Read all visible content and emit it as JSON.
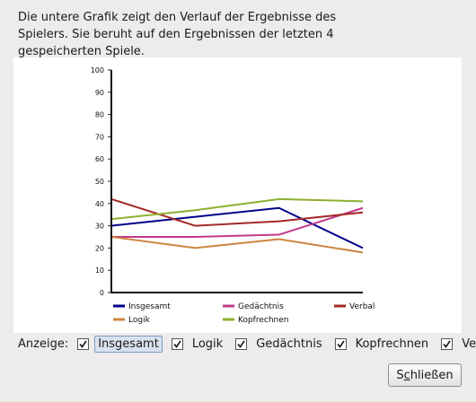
{
  "description": "Die untere Grafik zeigt den Verlauf der Ergebnisse des Spielers. Sie beruht auf den Ergebnissen der letzten 4 gespeicherten Spiele.",
  "controls": {
    "label": "Anzeige:",
    "checkboxes": [
      {
        "label": "Insgesamt",
        "checked": true
      },
      {
        "label": "Logik",
        "checked": true
      },
      {
        "label": "Gedächtnis",
        "checked": true
      },
      {
        "label": "Kopfrechnen",
        "checked": true
      },
      {
        "label": "Verbal",
        "checked": true
      }
    ]
  },
  "close_button": {
    "pre": "S",
    "mnemonic": "c",
    "post": "hließen"
  },
  "chart_data": {
    "type": "line",
    "x": [
      1,
      2,
      3,
      4
    ],
    "ylim": [
      0,
      100
    ],
    "yticks": [
      0,
      10,
      20,
      30,
      40,
      50,
      60,
      70,
      80,
      90,
      100
    ],
    "grid": false,
    "legend_position": "bottom",
    "series": [
      {
        "name": "Insgesamt",
        "color": "#00008b",
        "values": [
          30,
          34,
          38,
          20
        ]
      },
      {
        "name": "Gedächtnis",
        "color": "#c03a8a",
        "values": [
          25,
          25,
          26,
          38
        ]
      },
      {
        "name": "Verbal",
        "color": "#a52a2a",
        "values": [
          42,
          30,
          32,
          36
        ]
      },
      {
        "name": "Logik",
        "color": "#cd853f",
        "values": [
          25,
          20,
          24,
          18
        ]
      },
      {
        "name": "Kopfrechnen",
        "color": "#8db030",
        "values": [
          33,
          37,
          42,
          41
        ]
      }
    ]
  }
}
